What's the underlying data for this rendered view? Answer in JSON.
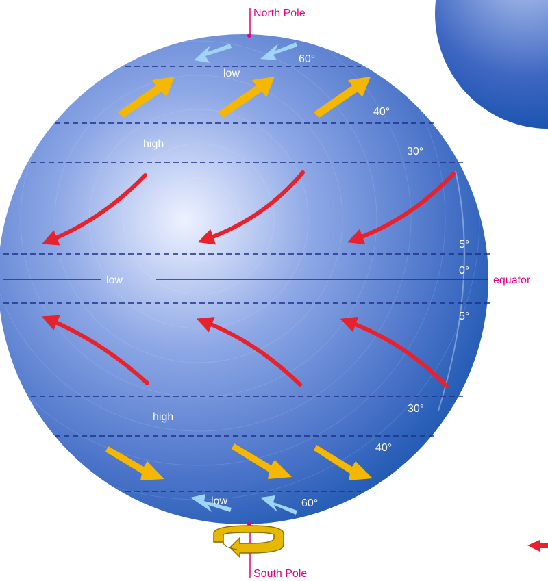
{
  "labels": {
    "north_pole": "North Pole",
    "south_pole": "South Pole",
    "equator": "equator"
  },
  "latitudes": {
    "n60": "60°",
    "n40": "40°",
    "n30": "30°",
    "n5": "5°",
    "eq0": "0°",
    "s5": "5°",
    "s30": "30°",
    "s40": "40°",
    "s60": "60°"
  },
  "pressure_zones": {
    "north_low": "low",
    "north_high": "high",
    "equatorial_low": "low",
    "south_high": "high",
    "south_low": "low"
  },
  "colors": {
    "globe_light": "#eef2ff",
    "globe_mid": "#5c7fd0",
    "globe_dark": "#0d4da8",
    "lat_line": "#1c2f86",
    "pole_accent": "#e6007e",
    "trade_wind": "#e8222c",
    "westerly": "#f5b700",
    "polar_easterly": "#9fd4f5",
    "rotation_arrow": "#e6b800"
  },
  "icons": {
    "rotation": "rotation-arrow-icon"
  }
}
